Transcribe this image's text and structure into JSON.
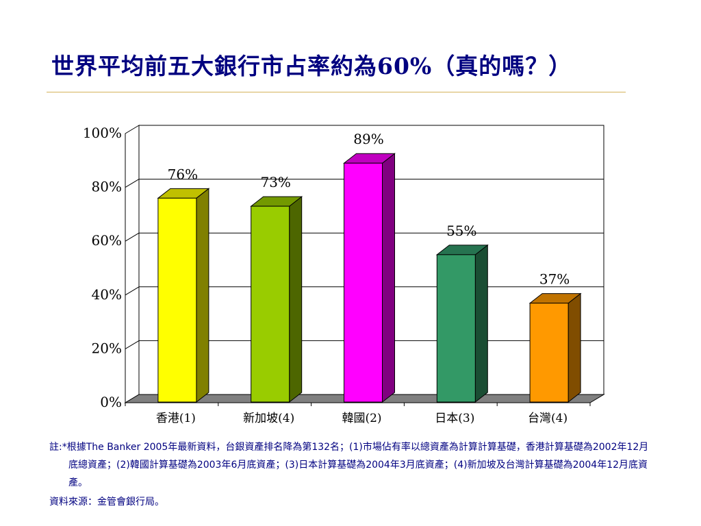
{
  "slide": {
    "title": "世界平均前五大銀行市占率約為60%（真的嗎？）",
    "note": "註:*根據The  Banker  2005年最新資料，台銀資產排名降為第132名；(1)市場佔有率以總資產為計算計算基礎，香港計算基礎為2002年12月底總資產；(2)韓國計算基礎為2003年6月底資產；(3)日本計算基礎為2004年3月底資產；(4)新加坡及台灣計算基礎為2004年12月底資產。",
    "source": "資料來源：金管會銀行局。"
  },
  "chart_data": {
    "type": "bar",
    "title": "",
    "xlabel": "",
    "ylabel": "",
    "categories": [
      "香港(1)",
      "新加坡(4)",
      "韓國(2)",
      "日本(3)",
      "台灣(4)"
    ],
    "values": [
      76,
      73,
      89,
      55,
      37
    ],
    "data_labels": [
      "76%",
      "73%",
      "89%",
      "55%",
      "37%"
    ],
    "ylim": [
      0,
      100
    ],
    "yticks": [
      0,
      20,
      40,
      60,
      80,
      100
    ],
    "ytick_labels": [
      "0%",
      "20%",
      "40%",
      "60%",
      "80%",
      "100%"
    ],
    "grid": true,
    "legend": "none",
    "three_d": true,
    "colors": [
      {
        "front": "#ffff00",
        "side": "#808000",
        "top": "#c0c000"
      },
      {
        "front": "#99cc00",
        "side": "#4d6600",
        "top": "#739900"
      },
      {
        "front": "#ff00ff",
        "side": "#800080",
        "top": "#c000c0"
      },
      {
        "front": "#339966",
        "side": "#1a4d33",
        "top": "#267350"
      },
      {
        "front": "#ff9900",
        "side": "#804d00",
        "top": "#c07300"
      }
    ]
  }
}
